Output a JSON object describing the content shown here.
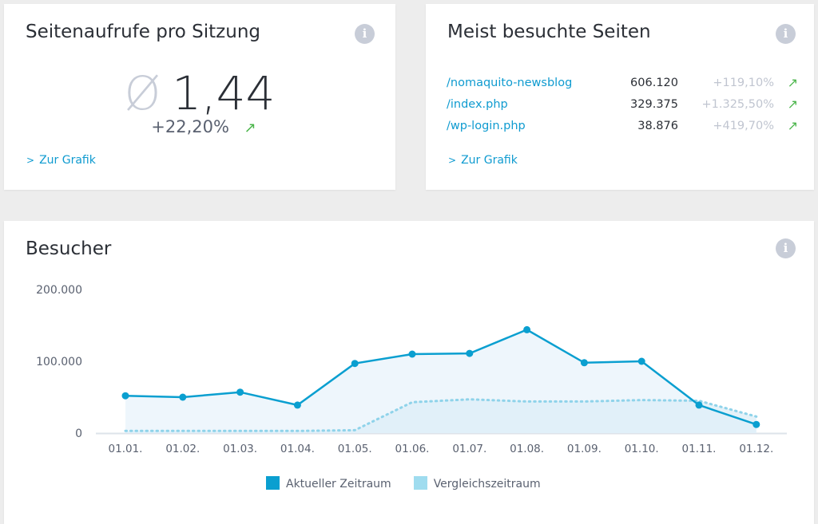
{
  "card_pages_per_session": {
    "title": "Seitenaufrufe pro Sitzung",
    "symbol": "Ø",
    "value": "1,44",
    "change": "+22,20%",
    "trend_arrow": "↗",
    "link": "Zur Grafik"
  },
  "card_top_pages": {
    "title": "Meist besuchte Seiten",
    "rows": [
      {
        "page": "/nomaquito-newsblog",
        "views": "606.120",
        "change": "+119,10%"
      },
      {
        "page": "/index.php",
        "views": "329.375",
        "change": "+1.325,50%"
      },
      {
        "page": "/wp-login.php",
        "views": "38.876",
        "change": "+419,70%"
      }
    ],
    "trend_arrow": "↗",
    "link": "Zur Grafik"
  },
  "colors": {
    "accent": "#0f9bd0",
    "current": "#0a9fd0",
    "comparison": "#9fdcef",
    "up": "#4bb54b"
  },
  "chart_data": {
    "type": "area",
    "title": "Besucher",
    "categories": [
      "01.01.",
      "01.02.",
      "01.03.",
      "01.04.",
      "01.05.",
      "01.06.",
      "01.07.",
      "01.08.",
      "01.09.",
      "01.10.",
      "01.11.",
      "01.12."
    ],
    "yticks": [
      "0",
      "100.000",
      "200.000"
    ],
    "ylim": [
      0,
      200000
    ],
    "series": [
      {
        "name": "Aktueller Zeitraum",
        "values": [
          52000,
          50000,
          57000,
          39000,
          97000,
          110000,
          111000,
          144000,
          98000,
          100000,
          39000,
          12000
        ]
      },
      {
        "name": "Vergleichszeitraum",
        "values": [
          3000,
          3000,
          3000,
          3000,
          4000,
          43000,
          47000,
          44000,
          44000,
          46000,
          45000,
          23000
        ]
      }
    ],
    "legend": "bottom"
  }
}
